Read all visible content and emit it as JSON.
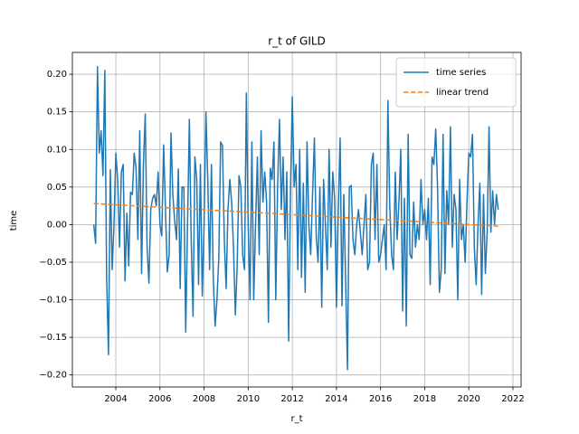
{
  "chart_data": {
    "type": "line",
    "title": "r_t of GILD",
    "x_label": "r_t",
    "y_label": "time",
    "xlim": [
      2002.03,
      2022.37
    ],
    "ylim": [
      -0.216,
      0.229
    ],
    "xticks": [
      2004,
      2006,
      2008,
      2010,
      2012,
      2014,
      2016,
      2018,
      2020,
      2022
    ],
    "yticks": [
      {
        "value": -0.2,
        "label": "−0.20"
      },
      {
        "value": -0.15,
        "label": "−0.15"
      },
      {
        "value": -0.1,
        "label": "−0.10"
      },
      {
        "value": -0.05,
        "label": "−0.05"
      },
      {
        "value": 0,
        "label": "0.00"
      },
      {
        "value": 0.05,
        "label": "0.05"
      },
      {
        "value": 0.1,
        "label": "0.10"
      },
      {
        "value": 0.15,
        "label": "0.15"
      },
      {
        "value": 0.2,
        "label": "0.20"
      }
    ],
    "grid": true,
    "legend": "upper right",
    "series": [
      {
        "name": "time series",
        "color": "#1f77b4",
        "style": "solid",
        "x": [
          2003.0,
          2003.083,
          2003.167,
          2003.25,
          2003.333,
          2003.417,
          2003.5,
          2003.583,
          2003.667,
          2003.75,
          2003.833,
          2003.917,
          2004.0,
          2004.083,
          2004.167,
          2004.25,
          2004.333,
          2004.417,
          2004.5,
          2004.583,
          2004.667,
          2004.75,
          2004.833,
          2004.917,
          2005.0,
          2005.083,
          2005.167,
          2005.25,
          2005.333,
          2005.417,
          2005.5,
          2005.583,
          2005.667,
          2005.75,
          2005.833,
          2005.917,
          2006.0,
          2006.083,
          2006.167,
          2006.25,
          2006.333,
          2006.417,
          2006.5,
          2006.583,
          2006.667,
          2006.75,
          2006.833,
          2006.917,
          2007.0,
          2007.083,
          2007.167,
          2007.25,
          2007.333,
          2007.417,
          2007.5,
          2007.583,
          2007.667,
          2007.75,
          2007.833,
          2007.917,
          2008.0,
          2008.083,
          2008.167,
          2008.25,
          2008.333,
          2008.417,
          2008.5,
          2008.583,
          2008.667,
          2008.75,
          2008.833,
          2008.917,
          2009.0,
          2009.083,
          2009.167,
          2009.25,
          2009.333,
          2009.417,
          2009.5,
          2009.583,
          2009.667,
          2009.75,
          2009.833,
          2009.917,
          2010.0,
          2010.083,
          2010.167,
          2010.25,
          2010.333,
          2010.417,
          2010.5,
          2010.583,
          2010.667,
          2010.75,
          2010.833,
          2010.917,
          2011.0,
          2011.083,
          2011.167,
          2011.25,
          2011.333,
          2011.417,
          2011.5,
          2011.583,
          2011.667,
          2011.75,
          2011.833,
          2011.917,
          2012.0,
          2012.083,
          2012.167,
          2012.25,
          2012.333,
          2012.417,
          2012.5,
          2012.583,
          2012.667,
          2012.75,
          2012.833,
          2012.917,
          2013.0,
          2013.083,
          2013.167,
          2013.25,
          2013.333,
          2013.417,
          2013.5,
          2013.583,
          2013.667,
          2013.75,
          2013.833,
          2013.917,
          2014.0,
          2014.083,
          2014.167,
          2014.25,
          2014.333,
          2014.417,
          2014.5,
          2014.583,
          2014.667,
          2014.75,
          2014.833,
          2014.917,
          2015.0,
          2015.083,
          2015.167,
          2015.25,
          2015.333,
          2015.417,
          2015.5,
          2015.583,
          2015.667,
          2015.75,
          2015.833,
          2015.917,
          2016.0,
          2016.083,
          2016.167,
          2016.25,
          2016.333,
          2016.417,
          2016.5,
          2016.583,
          2016.667,
          2016.75,
          2016.833,
          2016.917,
          2017.0,
          2017.083,
          2017.167,
          2017.25,
          2017.333,
          2017.417,
          2017.5,
          2017.583,
          2017.667,
          2017.75,
          2017.833,
          2017.917,
          2018.0,
          2018.083,
          2018.167,
          2018.25,
          2018.333,
          2018.417,
          2018.5,
          2018.583,
          2018.667,
          2018.75,
          2018.833,
          2018.917,
          2019.0,
          2019.083,
          2019.167,
          2019.25,
          2019.333,
          2019.417,
          2019.5,
          2019.583,
          2019.667,
          2019.75,
          2019.833,
          2019.917,
          2020.0,
          2020.083,
          2020.167,
          2020.25,
          2020.333,
          2020.417,
          2020.5,
          2020.583,
          2020.667,
          2020.75,
          2020.833,
          2020.917,
          2021.0,
          2021.083,
          2021.167,
          2021.25,
          2021.333
        ],
        "values": [
          0.0,
          -0.025,
          0.21,
          0.095,
          0.125,
          0.065,
          0.205,
          -0.07,
          -0.173,
          0.073,
          -0.06,
          0.0,
          0.095,
          0.06,
          -0.03,
          0.07,
          0.08,
          -0.075,
          0.015,
          -0.055,
          0.043,
          0.04,
          0.095,
          0.075,
          -0.02,
          0.125,
          -0.065,
          0.08,
          0.147,
          -0.03,
          -0.078,
          0.02,
          0.035,
          0.04,
          0.025,
          0.07,
          0.0,
          -0.015,
          0.106,
          0.02,
          -0.063,
          -0.04,
          0.122,
          0.04,
          0.005,
          -0.02,
          0.074,
          -0.085,
          0.05,
          0.05,
          -0.143,
          0.0,
          0.14,
          -0.02,
          -0.122,
          0.09,
          0.06,
          -0.08,
          0.08,
          -0.095,
          0.0,
          0.15,
          0.06,
          -0.06,
          0.08,
          -0.07,
          -0.135,
          -0.1,
          -0.045,
          0.11,
          0.105,
          -0.02,
          -0.085,
          0.02,
          0.06,
          0.03,
          -0.03,
          -0.12,
          -0.055,
          0.065,
          0.05,
          -0.04,
          -0.06,
          0.175,
          0.0,
          -0.1,
          0.11,
          -0.1,
          0.0,
          0.09,
          -0.04,
          0.125,
          0.03,
          0.07,
          0.03,
          -0.13,
          0.075,
          0.06,
          0.11,
          -0.1,
          0.05,
          0.14,
          0.02,
          0.09,
          -0.02,
          0.07,
          -0.155,
          0.045,
          0.17,
          0.05,
          0.08,
          -0.06,
          0.1,
          -0.07,
          0.055,
          -0.09,
          0.11,
          0.0,
          -0.04,
          0.04,
          0.115,
          -0.015,
          -0.05,
          0.05,
          -0.11,
          0.06,
          0.0,
          -0.06,
          0.1,
          -0.03,
          0.07,
          0.035,
          -0.11,
          0.02,
          0.115,
          -0.108,
          0.04,
          -0.075,
          -0.193,
          0.05,
          0.052,
          -0.02,
          -0.04,
          0.0,
          0.02,
          -0.01,
          -0.04,
          0.0,
          0.04,
          -0.06,
          -0.05,
          0.08,
          0.095,
          -0.02,
          0.08,
          -0.05,
          -0.04,
          -0.02,
          0.0,
          -0.06,
          0.165,
          0.025,
          -0.04,
          -0.06,
          0.07,
          -0.02,
          0.03,
          0.1,
          -0.115,
          0.035,
          -0.135,
          0.12,
          -0.04,
          -0.045,
          0.03,
          -0.03,
          0.0,
          -0.02,
          0.06,
          0.0,
          0.02,
          -0.02,
          0.035,
          -0.08,
          0.09,
          0.08,
          0.127,
          0.05,
          -0.09,
          -0.06,
          0.12,
          -0.065,
          0.045,
          0.0,
          0.13,
          -0.03,
          0.04,
          0.02,
          -0.1,
          0.06,
          -0.02,
          0.0,
          -0.05,
          0.03,
          0.095,
          0.09,
          0.12,
          -0.03,
          -0.08,
          0.0,
          0.055,
          -0.093,
          0.04,
          -0.065,
          -0.01,
          0.13,
          -0.01,
          0.045,
          0.0,
          0.04,
          0.02
        ]
      },
      {
        "name": "linear trend",
        "color": "#ff7f0e",
        "style": "dashed",
        "x": [
          2003.0,
          2021.333
        ],
        "values": [
          0.028,
          -0.002
        ]
      }
    ]
  }
}
